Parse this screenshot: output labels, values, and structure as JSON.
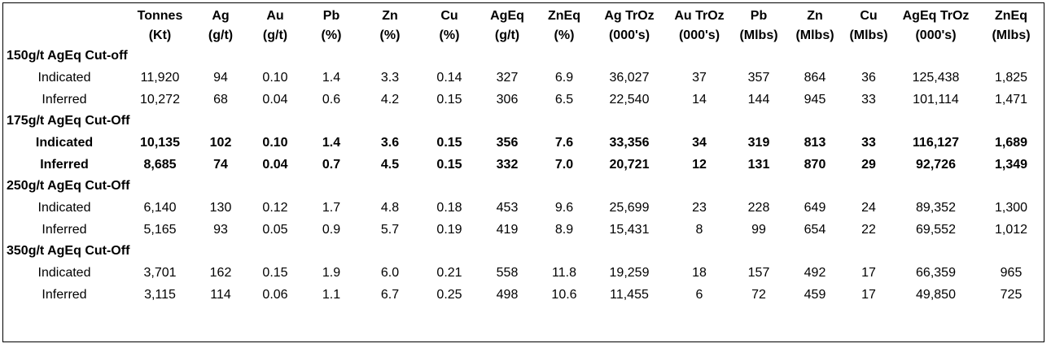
{
  "columns": [
    {
      "line1": "",
      "line2": ""
    },
    {
      "line1": "Tonnes",
      "line2": "(Kt)"
    },
    {
      "line1": "Ag",
      "line2": "(g/t)"
    },
    {
      "line1": "Au",
      "line2": "(g/t)"
    },
    {
      "line1": "Pb",
      "line2": "(%)"
    },
    {
      "line1": "Zn",
      "line2": "(%)"
    },
    {
      "line1": "Cu",
      "line2": "(%)"
    },
    {
      "line1": "AgEq",
      "line2": "(g/t)"
    },
    {
      "line1": "ZnEq",
      "line2": "(%)"
    },
    {
      "line1": "Ag TrOz",
      "line2": "(000's)"
    },
    {
      "line1": "Au TrOz",
      "line2": "(000's)"
    },
    {
      "line1": "Pb",
      "line2": "(Mlbs)"
    },
    {
      "line1": "Zn",
      "line2": "(Mlbs)"
    },
    {
      "line1": "Cu",
      "line2": "(Mlbs)"
    },
    {
      "line1": "AgEq TrOz",
      "line2": "(000's)"
    },
    {
      "line1": "ZnEq",
      "line2": "(Mlbs)"
    }
  ],
  "sections": [
    {
      "title": "150g/t AgEq Cut-off",
      "bold": false,
      "rows": [
        [
          "Indicated",
          "11,920",
          "94",
          "0.10",
          "1.4",
          "3.3",
          "0.14",
          "327",
          "6.9",
          "36,027",
          "37",
          "357",
          "864",
          "36",
          "125,438",
          "1,825"
        ],
        [
          "Inferred",
          "10,272",
          "68",
          "0.04",
          "0.6",
          "4.2",
          "0.15",
          "306",
          "6.5",
          "22,540",
          "14",
          "144",
          "945",
          "33",
          "101,114",
          "1,471"
        ]
      ]
    },
    {
      "title": "175g/t AgEq Cut-Off",
      "bold": true,
      "rows": [
        [
          "Indicated",
          "10,135",
          "102",
          "0.10",
          "1.4",
          "3.6",
          "0.15",
          "356",
          "7.6",
          "33,356",
          "34",
          "319",
          "813",
          "33",
          "116,127",
          "1,689"
        ],
        [
          "Inferred",
          "8,685",
          "74",
          "0.04",
          "0.7",
          "4.5",
          "0.15",
          "332",
          "7.0",
          "20,721",
          "12",
          "131",
          "870",
          "29",
          "92,726",
          "1,349"
        ]
      ]
    },
    {
      "title": "250g/t AgEq Cut-Off",
      "bold": false,
      "rows": [
        [
          "Indicated",
          "6,140",
          "130",
          "0.12",
          "1.7",
          "4.8",
          "0.18",
          "453",
          "9.6",
          "25,699",
          "23",
          "228",
          "649",
          "24",
          "89,352",
          "1,300"
        ],
        [
          "Inferred",
          "5,165",
          "93",
          "0.05",
          "0.9",
          "5.7",
          "0.19",
          "419",
          "8.9",
          "15,431",
          "8",
          "99",
          "654",
          "22",
          "69,552",
          "1,012"
        ]
      ]
    },
    {
      "title": "350g/t AgEq Cut-Off",
      "bold": false,
      "rows": [
        [
          "Indicated",
          "3,701",
          "162",
          "0.15",
          "1.9",
          "6.0",
          "0.21",
          "558",
          "11.8",
          "19,259",
          "18",
          "157",
          "492",
          "17",
          "66,359",
          "965"
        ],
        [
          "Inferred",
          "3,115",
          "114",
          "0.06",
          "1.1",
          "6.7",
          "0.25",
          "498",
          "10.6",
          "11,455",
          "6",
          "72",
          "459",
          "17",
          "49,850",
          "725"
        ]
      ]
    }
  ]
}
